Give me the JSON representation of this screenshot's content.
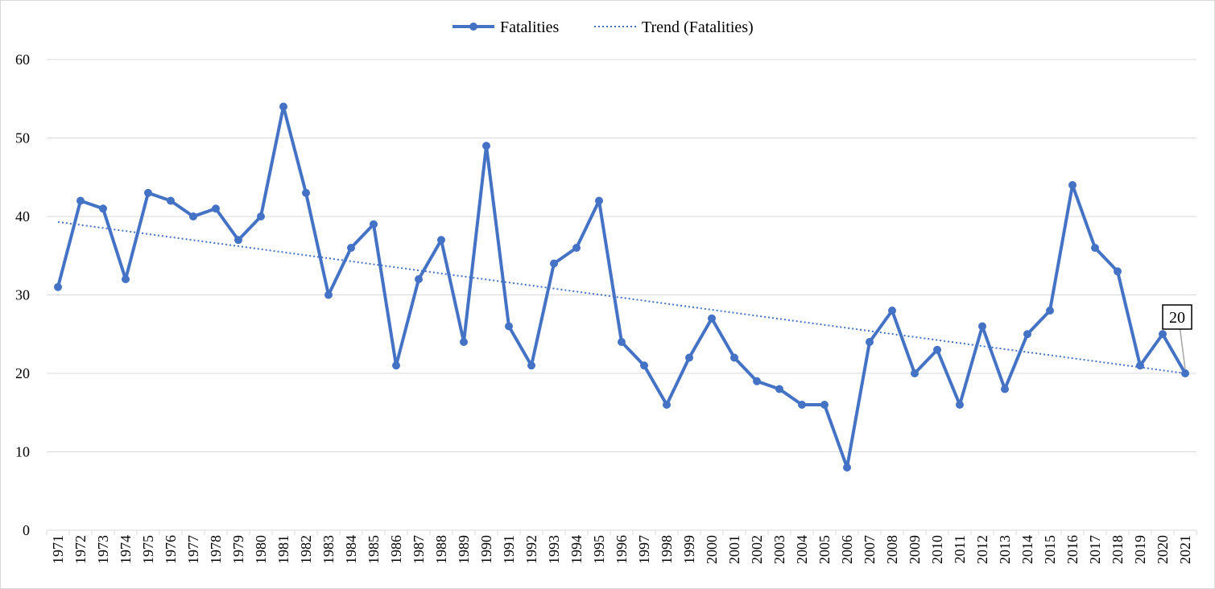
{
  "chart_data": {
    "type": "line",
    "title": "",
    "xlabel": "",
    "ylabel": "",
    "x": [
      "1971",
      "1972",
      "1973",
      "1974",
      "1975",
      "1976",
      "1977",
      "1978",
      "1979",
      "1980",
      "1981",
      "1982",
      "1983",
      "1984",
      "1985",
      "1986",
      "1987",
      "1988",
      "1989",
      "1990",
      "1991",
      "1992",
      "1993",
      "1994",
      "1995",
      "1996",
      "1997",
      "1998",
      "1999",
      "2000",
      "2001",
      "2002",
      "2003",
      "2004",
      "2005",
      "2006",
      "2007",
      "2008",
      "2009",
      "2010",
      "2011",
      "2012",
      "2013",
      "2014",
      "2015",
      "2016",
      "2017",
      "2018",
      "2019",
      "2020",
      "2021"
    ],
    "ylim": [
      0,
      60
    ],
    "yticks": [
      "0",
      "10",
      "20",
      "30",
      "40",
      "50",
      "60"
    ],
    "grid": true,
    "legend_position": "top",
    "series": [
      {
        "name": "Fatalities",
        "color": "#4472c4",
        "values": [
          31,
          42,
          41,
          32,
          43,
          42,
          40,
          41,
          37,
          40,
          54,
          43,
          30,
          36,
          39,
          21,
          32,
          37,
          24,
          49,
          26,
          21,
          34,
          36,
          42,
          24,
          21,
          16,
          22,
          27,
          22,
          19,
          18,
          16,
          16,
          8,
          24,
          28,
          20,
          23,
          16,
          26,
          18,
          25,
          28,
          44,
          36,
          33,
          21,
          25,
          20
        ]
      }
    ],
    "trendline": {
      "name": "Trend (Fatalities)",
      "type": "linear",
      "color": "#4472c4",
      "start": 39.3,
      "end": 20.0
    },
    "annotation": {
      "text": "20",
      "x": "2021",
      "y": 20
    }
  }
}
